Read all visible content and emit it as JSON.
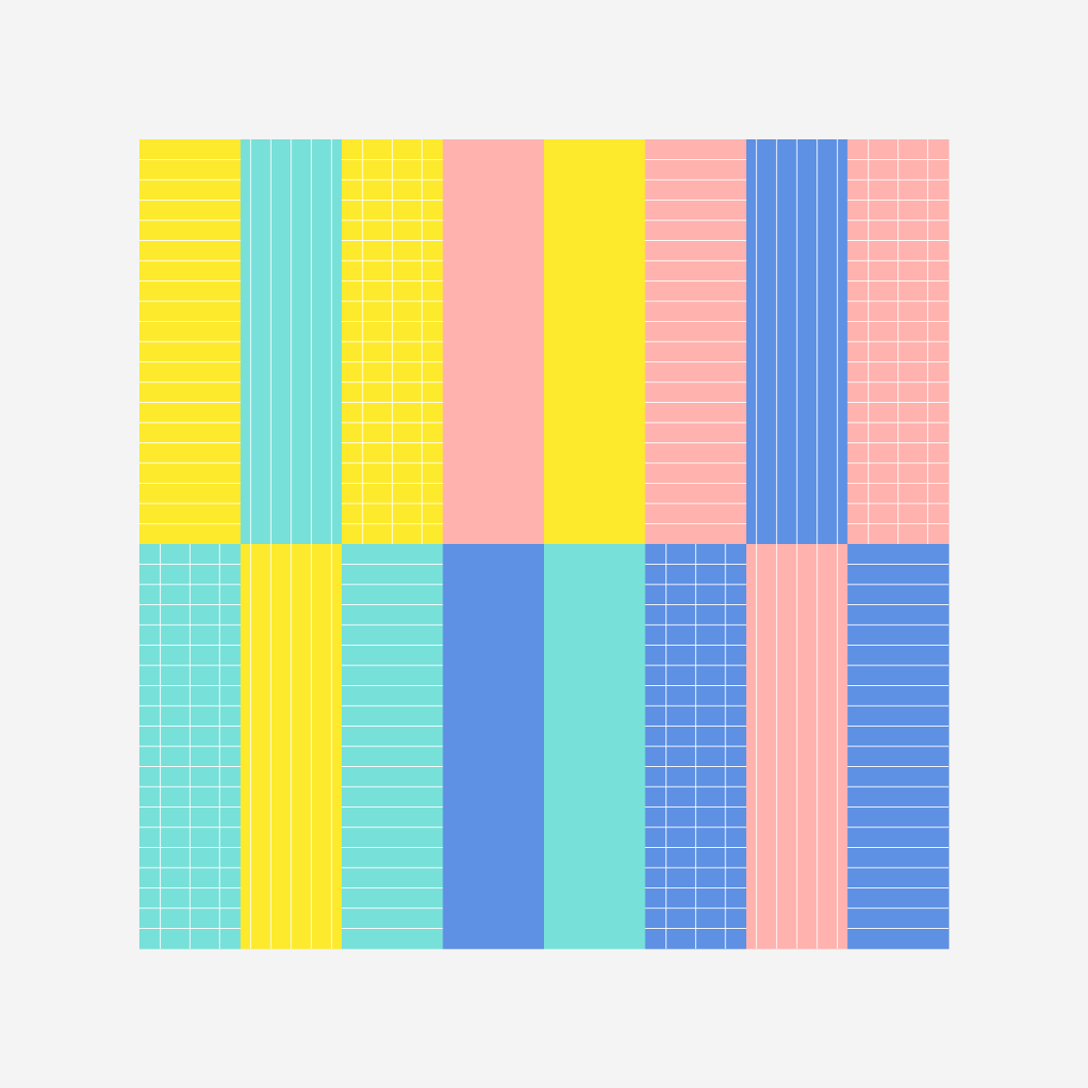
{
  "rows": [
    [
      {
        "color": "#fdea2d",
        "pattern": "horizontal"
      },
      {
        "color": "#77e0d9",
        "pattern": "vertical"
      },
      {
        "color": "#fdea2d",
        "pattern": "grid"
      },
      {
        "color": "#ffb2ae",
        "pattern": "plain"
      },
      {
        "color": "#fdea2d",
        "pattern": "plain"
      },
      {
        "color": "#ffb2ae",
        "pattern": "horizontal"
      },
      {
        "color": "#5e90e4",
        "pattern": "vertical"
      },
      {
        "color": "#ffb2ae",
        "pattern": "grid"
      }
    ],
    [
      {
        "color": "#77e0d9",
        "pattern": "grid"
      },
      {
        "color": "#fdea2d",
        "pattern": "vertical"
      },
      {
        "color": "#77e0d9",
        "pattern": "horizontal"
      },
      {
        "color": "#5e90e4",
        "pattern": "plain"
      },
      {
        "color": "#77e0d9",
        "pattern": "plain"
      },
      {
        "color": "#5e90e4",
        "pattern": "grid"
      },
      {
        "color": "#ffb2ae",
        "pattern": "vertical"
      },
      {
        "color": "#5e90e4",
        "pattern": "horizontal"
      }
    ]
  ]
}
